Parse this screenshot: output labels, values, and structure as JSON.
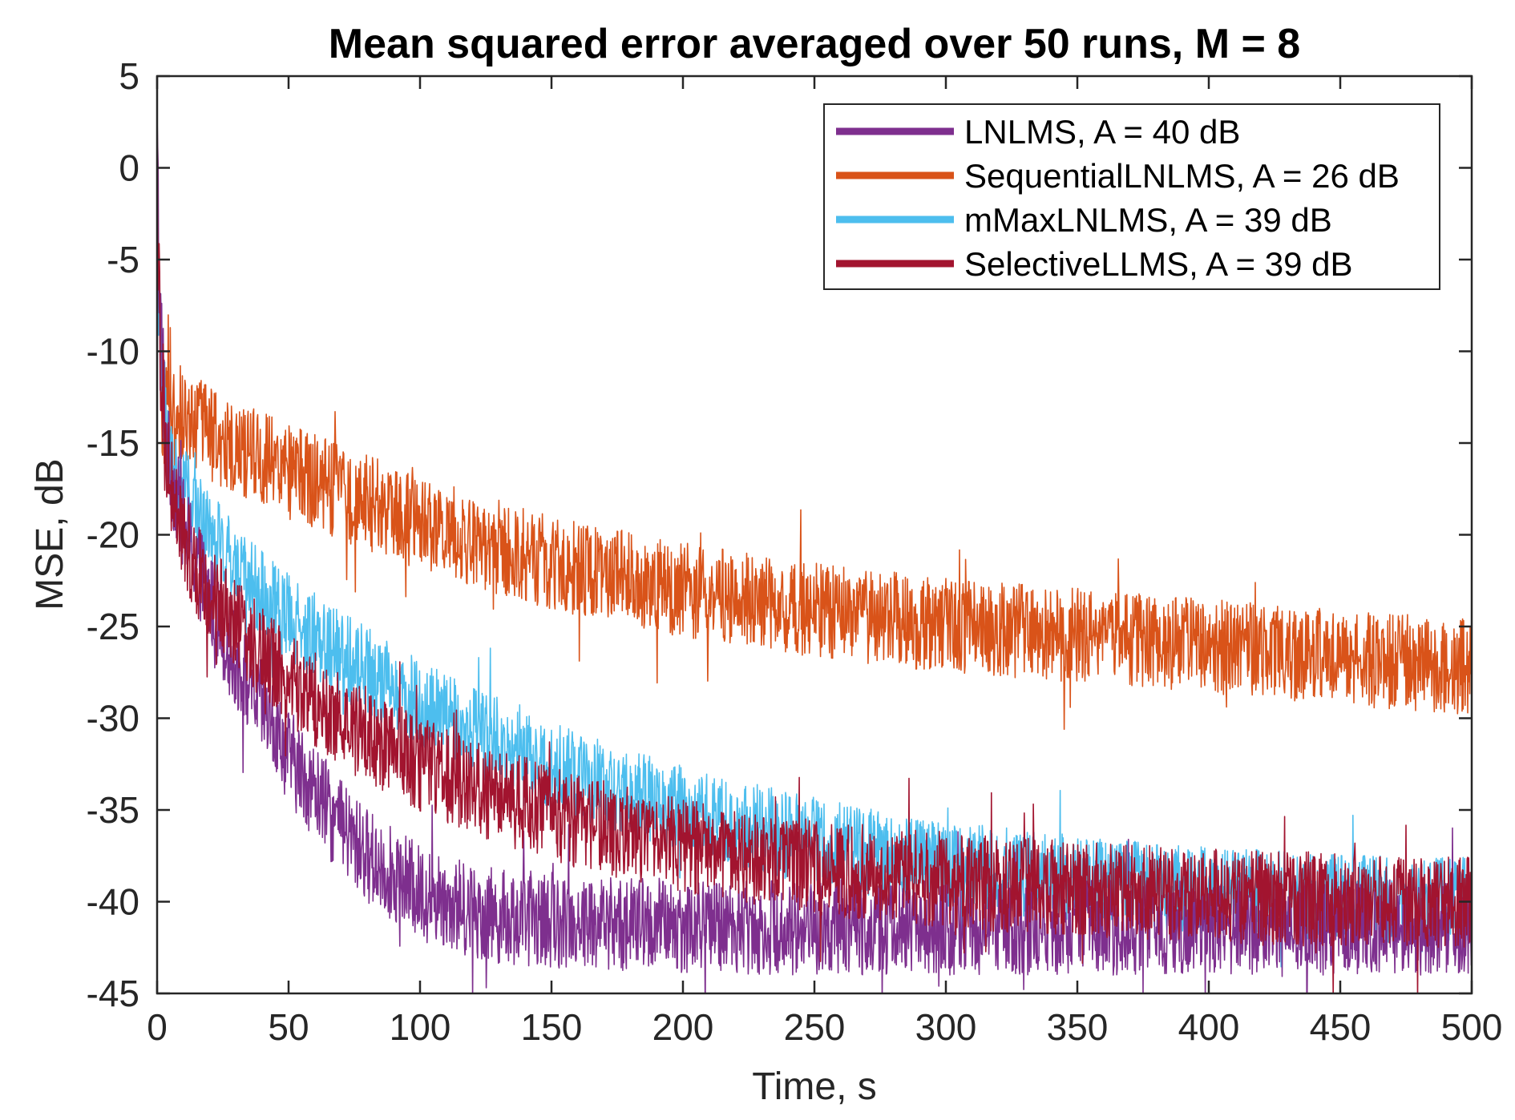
{
  "chart_data": {
    "type": "line",
    "title": "Mean squared error averaged over 50 runs, M = 8",
    "xlabel": "Time, s",
    "ylabel": "MSE, dB",
    "xlim": [
      0,
      500
    ],
    "ylim": [
      -45,
      5
    ],
    "xticks": [
      0,
      50,
      100,
      150,
      200,
      250,
      300,
      350,
      400,
      450,
      500
    ],
    "yticks": [
      5,
      0,
      -5,
      -10,
      -15,
      -20,
      -25,
      -30,
      -35,
      -40,
      -45
    ],
    "grid": false,
    "legend_position": "top-right",
    "series": [
      {
        "name": "LNLMS, A = 40 dB",
        "color": "#7e2f8e",
        "noise_db": 2.6,
        "x": [
          0,
          1,
          3,
          5,
          10,
          15,
          20,
          30,
          40,
          50,
          60,
          70,
          80,
          90,
          100,
          110,
          120,
          130,
          150,
          175,
          200,
          250,
          300,
          350,
          400,
          450,
          500
        ],
        "y": [
          1,
          -8,
          -14,
          -16.5,
          -19.5,
          -21.5,
          -23.5,
          -27,
          -29.5,
          -32,
          -34,
          -36,
          -37.5,
          -38.5,
          -39.5,
          -40,
          -40.5,
          -40.8,
          -41,
          -41.2,
          -41.3,
          -41.4,
          -41.4,
          -41.4,
          -41.4,
          -41.4,
          -41.4
        ]
      },
      {
        "name": "SequentialLNLMS, A = 26 dB",
        "color": "#d95319",
        "noise_db": 2.6,
        "x": [
          0,
          1,
          3,
          5,
          10,
          20,
          30,
          50,
          75,
          100,
          125,
          150,
          175,
          200,
          225,
          250,
          275,
          300,
          325,
          350,
          375,
          400,
          425,
          450,
          475,
          500
        ],
        "y": [
          -5,
          -11,
          -12.5,
          -13,
          -13.5,
          -14.5,
          -15.2,
          -16.5,
          -18,
          -19.3,
          -20.5,
          -21.5,
          -22.3,
          -23,
          -23.6,
          -24.1,
          -24.5,
          -24.9,
          -25.2,
          -25.5,
          -25.8,
          -26.1,
          -26.4,
          -26.7,
          -27,
          -27.2
        ]
      },
      {
        "name": "mMaxLNLMS, A = 39 dB",
        "color": "#4dbeee",
        "noise_db": 2.4,
        "x": [
          0,
          1,
          3,
          5,
          10,
          15,
          20,
          30,
          40,
          50,
          75,
          100,
          125,
          150,
          175,
          200,
          225,
          250,
          275,
          300,
          325,
          350,
          375,
          400,
          425,
          450,
          475,
          500
        ],
        "y": [
          1,
          -10,
          -14,
          -15.5,
          -17.5,
          -19,
          -20,
          -21.8,
          -23.3,
          -24.5,
          -27,
          -29.2,
          -31,
          -32.6,
          -33.9,
          -35,
          -35.9,
          -36.7,
          -37.4,
          -38,
          -38.4,
          -38.8,
          -39.1,
          -39.4,
          -39.6,
          -39.8,
          -39.9,
          -40
        ]
      },
      {
        "name": "SelectiveLLMS, A = 39 dB",
        "color": "#a2142f",
        "noise_db": 2.6,
        "x": [
          0,
          1,
          3,
          5,
          10,
          15,
          20,
          30,
          40,
          50,
          60,
          75,
          100,
          125,
          150,
          175,
          200,
          225,
          250,
          275,
          300,
          325,
          350,
          375,
          400,
          425,
          450,
          475,
          500
        ],
        "y": [
          1,
          -9,
          -15,
          -17,
          -20,
          -21.8,
          -23,
          -25,
          -26.5,
          -27.8,
          -29,
          -30.5,
          -32.5,
          -34,
          -35.2,
          -36.2,
          -37,
          -37.6,
          -38.1,
          -38.5,
          -38.8,
          -39.1,
          -39.3,
          -39.5,
          -39.7,
          -39.8,
          -39.9,
          -40,
          -40
        ]
      }
    ]
  }
}
